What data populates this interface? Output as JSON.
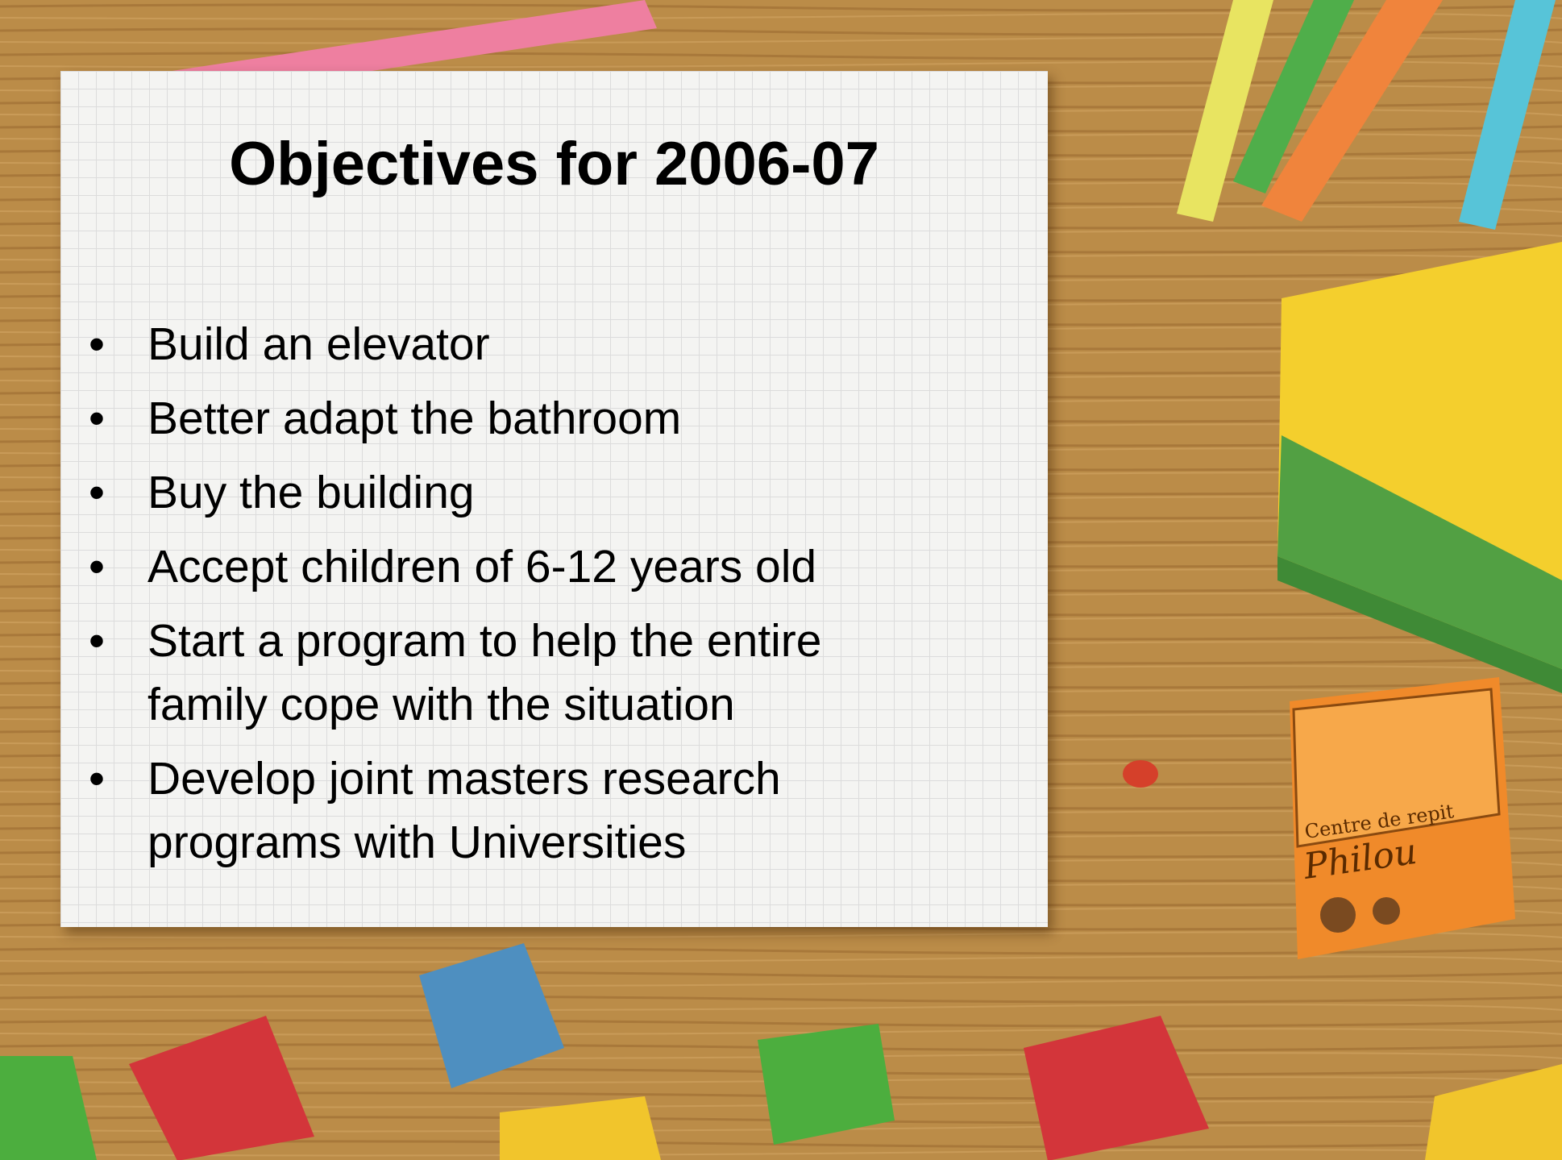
{
  "title": "Objectives for 2006-07",
  "bullets": [
    "Build an elevator",
    "Better adapt the bathroom",
    "Buy the building",
    "Accept children of 6-12 years old",
    "Start a program to help the entire family cope with the situation",
    "Develop joint masters research programs with Universities"
  ],
  "logo": {
    "line1": "Centre de repit",
    "line2": "Philou"
  }
}
